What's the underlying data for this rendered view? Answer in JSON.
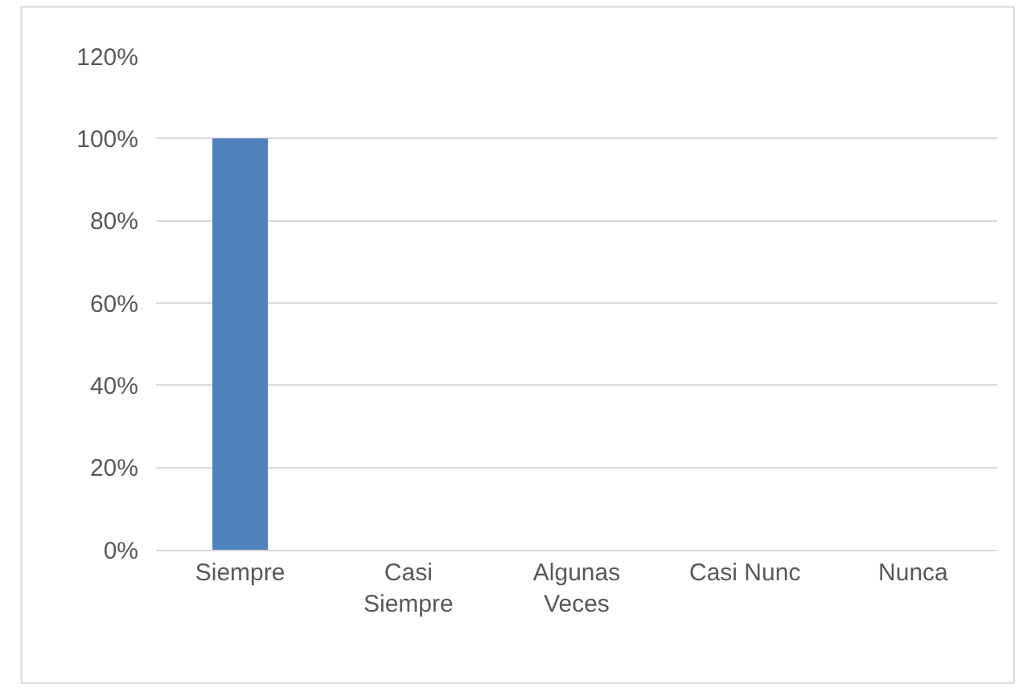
{
  "chart_data": {
    "type": "bar",
    "categories": [
      "Siempre",
      "Casi\nSiempre",
      "Algunas\nVeces",
      "Casi Nunc",
      "Nunca"
    ],
    "values": [
      100,
      0,
      0,
      0,
      0
    ],
    "color": "#4f81bd",
    "ylim": [
      0,
      120
    ],
    "yticks": [
      {
        "value": 0,
        "label": "0%"
      },
      {
        "value": 20,
        "label": "20%"
      },
      {
        "value": 40,
        "label": "40%"
      },
      {
        "value": 60,
        "label": "60%"
      },
      {
        "value": 80,
        "label": "80%"
      },
      {
        "value": 100,
        "label": "100%"
      },
      {
        "value": 120,
        "label": "120%"
      }
    ],
    "grid": "y"
  }
}
